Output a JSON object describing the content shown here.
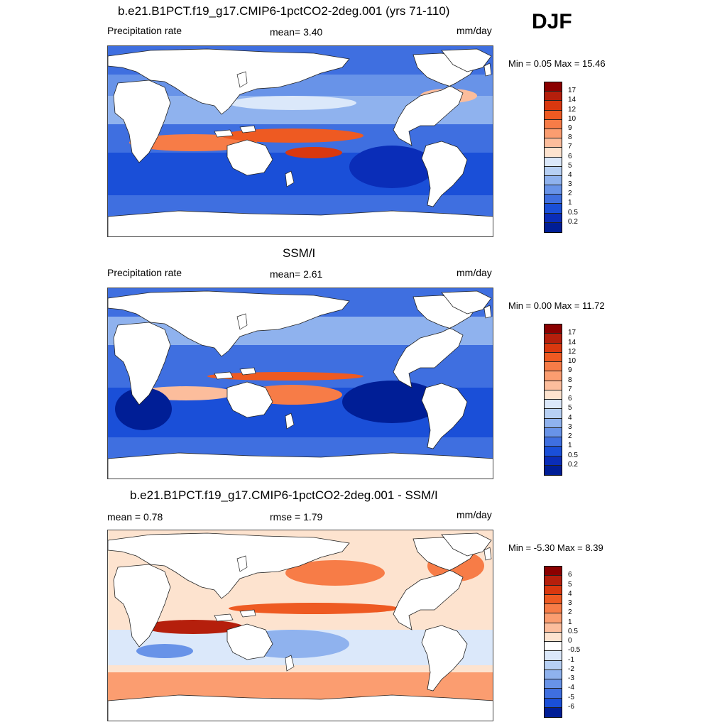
{
  "season": "DJF",
  "panels": [
    {
      "title": "b.e21.B1PCT.f19_g17.CMIP6-1pctCO2-2deg.001 (yrs 71-110)",
      "left_label": "Precipitation rate",
      "center_label": "mean=   3.40",
      "right_label": "mm/day",
      "minmax": "Min =   0.05 Max =  15.46",
      "colorbar": {
        "levels": [
          "17",
          "14",
          "12",
          "10",
          "9",
          "8",
          "7",
          "6",
          "5",
          "4",
          "3",
          "2",
          "1",
          "0.5",
          "0.2"
        ],
        "colors": [
          "#8b0000",
          "#b51f0c",
          "#d9380f",
          "#ee5a22",
          "#f77c47",
          "#fb9d70",
          "#fcbd9c",
          "#fde3cf",
          "#dbe8fa",
          "#b7d0f4",
          "#8fb2ee",
          "#6893e8",
          "#3f6fe0",
          "#1a4fd8",
          "#0a2db8",
          "#001e96"
        ]
      }
    },
    {
      "title": "SSM/I",
      "left_label": "Precipitation rate",
      "center_label": "mean=   2.61",
      "right_label": "mm/day",
      "minmax": "Min =   0.00 Max =  11.72",
      "colorbar": {
        "levels": [
          "17",
          "14",
          "12",
          "10",
          "9",
          "8",
          "7",
          "6",
          "5",
          "4",
          "3",
          "2",
          "1",
          "0.5",
          "0.2"
        ],
        "colors": [
          "#8b0000",
          "#b51f0c",
          "#d9380f",
          "#ee5a22",
          "#f77c47",
          "#fb9d70",
          "#fcbd9c",
          "#fde3cf",
          "#dbe8fa",
          "#b7d0f4",
          "#8fb2ee",
          "#6893e8",
          "#3f6fe0",
          "#1a4fd8",
          "#0a2db8",
          "#001e96"
        ]
      }
    },
    {
      "title": "b.e21.B1PCT.f19_g17.CMIP6-1pctCO2-2deg.001 - SSM/I",
      "left_label": "mean =   0.78",
      "center_label": "rmse =   1.79",
      "right_label": "mm/day",
      "minmax": "Min =  -5.30 Max =   8.39",
      "colorbar": {
        "levels": [
          "6",
          "5",
          "4",
          "3",
          "2",
          "1",
          "0.5",
          "0",
          "-0.5",
          "-1",
          "-2",
          "-3",
          "-4",
          "-5",
          "-6"
        ],
        "colors": [
          "#8b0000",
          "#b51f0c",
          "#d9380f",
          "#ee5a22",
          "#f77c47",
          "#fb9d70",
          "#fcbd9c",
          "#fde3cf",
          "#ffffff",
          "#dbe8fa",
          "#b7d0f4",
          "#8fb2ee",
          "#6893e8",
          "#3f6fe0",
          "#1a4fd8",
          "#001e96"
        ]
      }
    }
  ]
}
